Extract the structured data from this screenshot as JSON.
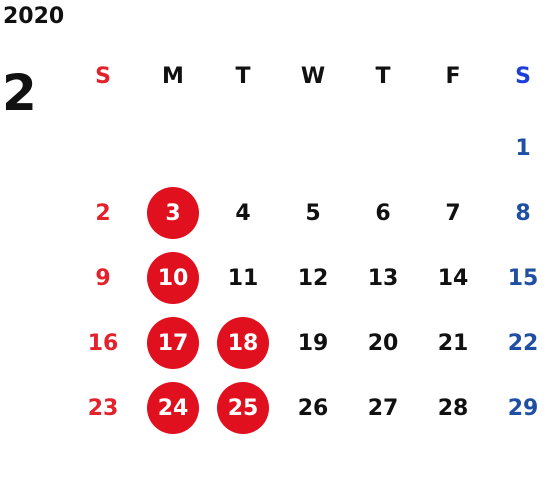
{
  "calendar": {
    "year": "2020",
    "month": "2",
    "weekdays": [
      "S",
      "M",
      "T",
      "W",
      "T",
      "F",
      "S"
    ],
    "weeks": [
      [
        "",
        "",
        "",
        "",
        "",
        "",
        "1"
      ],
      [
        "2",
        "3",
        "4",
        "5",
        "6",
        "7",
        "8"
      ],
      [
        "9",
        "10",
        "11",
        "12",
        "13",
        "14",
        "15"
      ],
      [
        "16",
        "17",
        "18",
        "19",
        "20",
        "21",
        "22"
      ],
      [
        "23",
        "24",
        "25",
        "26",
        "27",
        "28",
        "29"
      ]
    ],
    "highlighted_days": [
      "3",
      "10",
      "17",
      "18",
      "24",
      "25"
    ]
  },
  "colors": {
    "sunday": "#e3222c",
    "saturday": "#1f4fa3",
    "highlight": "#e0101e",
    "text": "#111111"
  }
}
